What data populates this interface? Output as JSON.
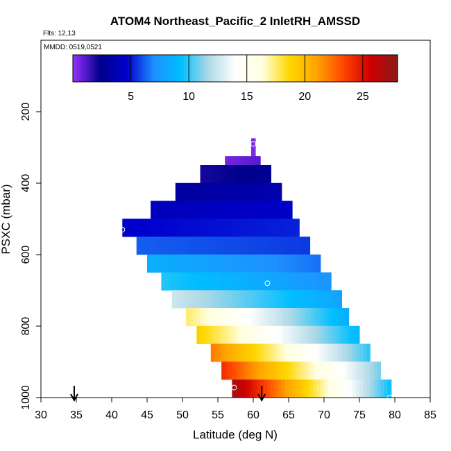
{
  "chart_data": {
    "type": "heatmap",
    "title": "ATOM4 Northeast_Pacific_2 InletRH_AMSSD",
    "flights_label": "Flts: 12,13",
    "dates_label": "MMDD: 0519,0521",
    "xlabel": "Latitude (deg N)",
    "ylabel": "PSXC (mbar)",
    "xlim": [
      30,
      85
    ],
    "ylim": [
      1000,
      0
    ],
    "x_ticks": [
      30,
      35,
      40,
      45,
      50,
      55,
      60,
      65,
      70,
      75,
      80,
      85
    ],
    "y_ticks": [
      200,
      400,
      600,
      800,
      1000
    ],
    "colorbar": {
      "range": [
        0,
        28
      ],
      "ticks": [
        5,
        10,
        15,
        20,
        25
      ],
      "colors": [
        "#9B30FF",
        "#00008B",
        "#0000CD",
        "#1E90FF",
        "#00BFFF",
        "#ADD8E6",
        "#FFFFFF",
        "#FFFFE0",
        "#FFD700",
        "#FFA500",
        "#FF4500",
        "#CD0000",
        "#8B1A1A"
      ]
    },
    "rows": [
      {
        "p": 287,
        "lat_min": 59.7,
        "lat_max": 60.3,
        "v0": 0.4,
        "v1": 0.6
      },
      {
        "p": 312,
        "lat_min": 59.7,
        "lat_max": 60.3,
        "v0": 0.4,
        "v1": 0.6
      },
      {
        "p": 337,
        "lat_min": 56.0,
        "lat_max": 61.0,
        "v0": 0.6,
        "v1": 1.0
      },
      {
        "p": 362,
        "lat_min": 52.5,
        "lat_max": 62.5,
        "v0": 2.0,
        "v1": 2.6
      },
      {
        "p": 387,
        "lat_min": 52.5,
        "lat_max": 62.5,
        "v0": 2.0,
        "v1": 2.6
      },
      {
        "p": 412,
        "lat_min": 49.0,
        "lat_max": 64.0,
        "v0": 3.0,
        "v1": 3.6
      },
      {
        "p": 437,
        "lat_min": 49.0,
        "lat_max": 64.0,
        "v0": 3.0,
        "v1": 3.6
      },
      {
        "p": 462,
        "lat_min": 45.5,
        "lat_max": 65.5,
        "v0": 4.0,
        "v1": 4.5
      },
      {
        "p": 487,
        "lat_min": 45.5,
        "lat_max": 65.5,
        "v0": 4.0,
        "v1": 4.5
      },
      {
        "p": 512,
        "lat_min": 41.5,
        "lat_max": 66.5,
        "v0": 4.6,
        "v1": 5.2
      },
      {
        "p": 537,
        "lat_min": 41.5,
        "lat_max": 66.5,
        "v0": 4.6,
        "v1": 5.2
      },
      {
        "p": 562,
        "lat_min": 43.5,
        "lat_max": 68.0,
        "v0": 6.2,
        "v1": 5.6
      },
      {
        "p": 587,
        "lat_min": 43.5,
        "lat_max": 68.0,
        "v0": 6.2,
        "v1": 5.6
      },
      {
        "p": 612,
        "lat_min": 45.0,
        "lat_max": 69.5,
        "v0": 8.5,
        "v1": 6.5
      },
      {
        "p": 637,
        "lat_min": 45.0,
        "lat_max": 69.5,
        "v0": 8.5,
        "v1": 6.5
      },
      {
        "p": 662,
        "lat_min": 47.0,
        "lat_max": 71.0,
        "v0": 9.8,
        "v1": 7.2
      },
      {
        "p": 687,
        "lat_min": 47.0,
        "lat_max": 71.0,
        "v0": 9.8,
        "v1": 7.2
      },
      {
        "p": 712,
        "lat_min": 48.5,
        "lat_max": 72.5,
        "v0": 12.5,
        "v1": 8.0
      },
      {
        "p": 737,
        "lat_min": 48.5,
        "lat_max": 72.5,
        "v0": 12.5,
        "v1": 8.0
      },
      {
        "p": 762,
        "lat_min": 50.5,
        "lat_max": 73.5,
        "v0": 17.5,
        "v1": 8.5
      },
      {
        "p": 787,
        "lat_min": 50.5,
        "lat_max": 73.5,
        "v0": 17.5,
        "v1": 8.5
      },
      {
        "p": 812,
        "lat_min": 52.0,
        "lat_max": 75.0,
        "v0": 19.0,
        "v1": 9.0
      },
      {
        "p": 837,
        "lat_min": 52.0,
        "lat_max": 75.0,
        "v0": 19.0,
        "v1": 9.0
      },
      {
        "p": 862,
        "lat_min": 54.0,
        "lat_max": 76.5,
        "v0": 22.0,
        "v1": 10.0
      },
      {
        "p": 887,
        "lat_min": 54.0,
        "lat_max": 76.5,
        "v0": 22.0,
        "v1": 10.0
      },
      {
        "p": 912,
        "lat_min": 55.5,
        "lat_max": 78.0,
        "v0": 24.0,
        "v1": 11.0
      },
      {
        "p": 937,
        "lat_min": 55.5,
        "lat_max": 78.0,
        "v0": 24.0,
        "v1": 11.0
      },
      {
        "p": 962,
        "lat_min": 57.0,
        "lat_max": 79.5,
        "v0": 27.0,
        "v1": 9.5
      },
      {
        "p": 987,
        "lat_min": 57.0,
        "lat_max": 79.5,
        "v0": 27.0,
        "v1": 9.5
      }
    ],
    "markers": [
      {
        "lat": 60.0,
        "p": 290
      },
      {
        "lat": 41.5,
        "p": 530
      },
      {
        "lat": 62.0,
        "p": 680
      },
      {
        "lat": 57.3,
        "p": 972
      },
      {
        "lat": 79.3,
        "p": 1000
      }
    ],
    "arrows": [
      {
        "lat": 34.7
      },
      {
        "lat": 61.2
      }
    ]
  }
}
